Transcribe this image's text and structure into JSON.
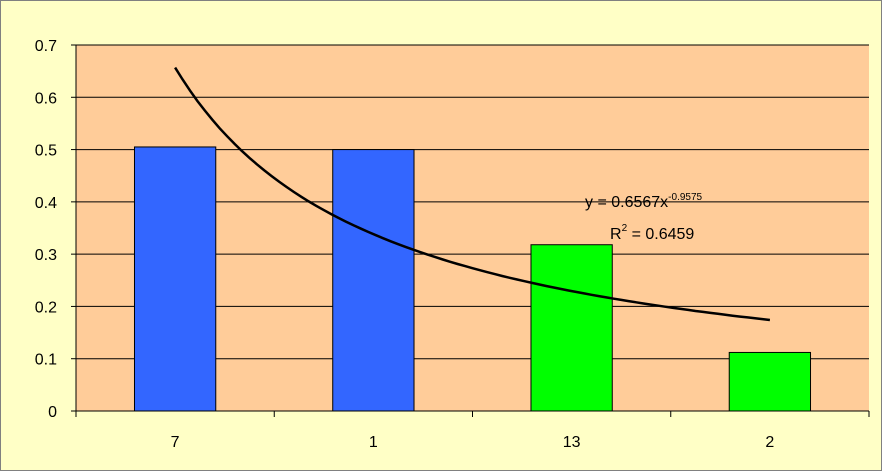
{
  "chart_data": {
    "type": "bar",
    "title": "",
    "xlabel": "",
    "ylabel": "",
    "categories": [
      "7",
      "1",
      "13",
      "2"
    ],
    "values": [
      0.505,
      0.5,
      0.318,
      0.112
    ],
    "bar_colors": [
      "#3366ff",
      "#3366ff",
      "#00ff00",
      "#00ff00"
    ],
    "ylim": [
      0,
      0.7
    ],
    "yticks": [
      "0",
      "0.1",
      "0.2",
      "0.3",
      "0.4",
      "0.5",
      "0.6",
      "0.7"
    ],
    "grid": true,
    "legend": "none",
    "trendline": {
      "type": "power",
      "coefficient": 0.6567,
      "exponent": -0.9575,
      "equation_text": "y = 0.6567x",
      "equation_exponent": "-0.9575",
      "r2_label": "R",
      "r2_sup": "2",
      "r2_value": " = 0.6459"
    }
  },
  "colors": {
    "chart_background": "#ffffc6",
    "plot_background": "#ffcc99",
    "gridline": "#000000",
    "trendline": "#000000",
    "bar_border": "#000000"
  }
}
